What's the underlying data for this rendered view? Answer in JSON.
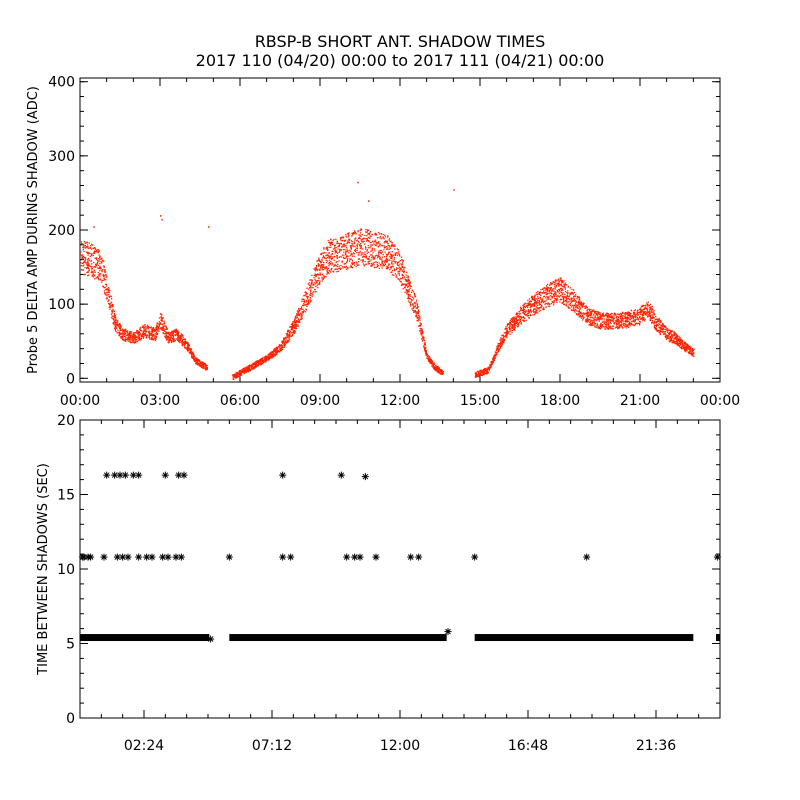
{
  "header": {
    "title": "RBSP-B SHORT ANT. SHADOW TIMES",
    "subtitle": "2017 110 (04/20) 00:00 to 2017 111 (04/21) 00:00"
  },
  "chart_data": [
    {
      "type": "scatter",
      "ylabel": "Probe 5 DELTA AMP DURING SHADOW (ADC)",
      "xlabel": "",
      "x_unit": "hours",
      "xlim": [
        0,
        24
      ],
      "ylim": [
        -5,
        405
      ],
      "yticks": [
        0,
        100,
        200,
        300,
        400
      ],
      "xticks": [
        0,
        3,
        6,
        9,
        12,
        15,
        18,
        21,
        24
      ],
      "xtick_labels": [
        "00:00",
        "03:00",
        "06:00",
        "09:00",
        "12:00",
        "15:00",
        "18:00",
        "21:00",
        "00:00"
      ],
      "color": "#ff2200",
      "series": [
        {
          "x": [
            0.0,
            0.4,
            0.8,
            1.0,
            1.3,
            1.6,
            2.0,
            2.4,
            2.8,
            3.0,
            3.3,
            3.6,
            4.0,
            4.3,
            4.6,
            4.75,
            5.7,
            6.0,
            6.5,
            7.0,
            7.5,
            8.0,
            8.5,
            9.0,
            9.3,
            9.6,
            10.0,
            10.5,
            11.0,
            11.5,
            12.0,
            12.3,
            12.6,
            12.8,
            13.0,
            13.3,
            13.6,
            14.8,
            15.3,
            15.7,
            16.0,
            16.5,
            17.0,
            17.5,
            18.0,
            18.5,
            19.0,
            19.5,
            20.0,
            20.5,
            21.0,
            21.3,
            21.6,
            22.0,
            22.3,
            22.6,
            23.0,
            23.9
          ],
          "y": [
            165,
            160,
            150,
            120,
            75,
            60,
            55,
            65,
            60,
            80,
            55,
            60,
            45,
            25,
            18,
            15,
            2,
            8,
            18,
            28,
            42,
            70,
            110,
            150,
            165,
            168,
            172,
            178,
            175,
            170,
            150,
            120,
            95,
            60,
            30,
            15,
            8,
            5,
            12,
            45,
            65,
            85,
            100,
            112,
            120,
            105,
            85,
            78,
            78,
            80,
            85,
            95,
            75,
            60,
            55,
            45,
            35,
            5
          ]
        }
      ]
    },
    {
      "type": "scatter",
      "ylabel": "TIME BETWEEN SHADOWS (SEC)",
      "xlabel": "",
      "x_unit": "hours",
      "xlim": [
        0,
        24
      ],
      "ylim": [
        0,
        20
      ],
      "yticks": [
        0,
        5,
        10,
        15,
        20
      ],
      "xticks": [
        2.4,
        7.2,
        12.0,
        16.8,
        21.6
      ],
      "xtick_labels": [
        "02:24",
        "07:12",
        "12:00",
        "16:48",
        "21:36"
      ],
      "color": "#000000",
      "series": [
        {
          "name": "",
          "x": [
            0.1,
            0.3,
            1.0,
            1.3,
            1.5,
            1.7,
            2.0,
            2.2,
            3.2,
            3.7,
            3.9,
            7.6,
            9.8,
            10.7,
            0.15,
            0.4,
            0.9,
            1.4,
            1.6,
            1.8,
            2.2,
            2.5,
            2.7,
            3.1,
            3.3,
            3.6,
            3.8,
            5.6,
            7.6,
            7.9,
            10.0,
            10.3,
            10.5,
            11.1,
            12.4,
            12.7,
            14.8,
            19.0,
            23.9,
            13.8,
            4.9,
            15.0,
            18.0
          ],
          "y": [
            10.8,
            10.8,
            16.3,
            16.3,
            16.3,
            16.3,
            16.3,
            16.3,
            16.3,
            16.3,
            16.3,
            16.3,
            16.3,
            16.2,
            10.8,
            10.8,
            10.8,
            10.8,
            10.8,
            10.8,
            10.8,
            10.8,
            10.8,
            10.8,
            10.8,
            10.8,
            10.8,
            10.8,
            10.8,
            10.8,
            10.8,
            10.8,
            10.8,
            10.8,
            10.8,
            10.8,
            10.8,
            10.8,
            10.8,
            5.8,
            5.3,
            5.4,
            5.4
          ]
        }
      ],
      "baseline_segments": [
        {
          "x0": 0.0,
          "x1": 4.85,
          "y": 5.4
        },
        {
          "x0": 5.6,
          "x1": 13.75,
          "y": 5.4
        },
        {
          "x0": 14.8,
          "x1": 23.0,
          "y": 5.4
        },
        {
          "x0": 23.85,
          "x1": 24.0,
          "y": 5.4
        }
      ]
    }
  ]
}
